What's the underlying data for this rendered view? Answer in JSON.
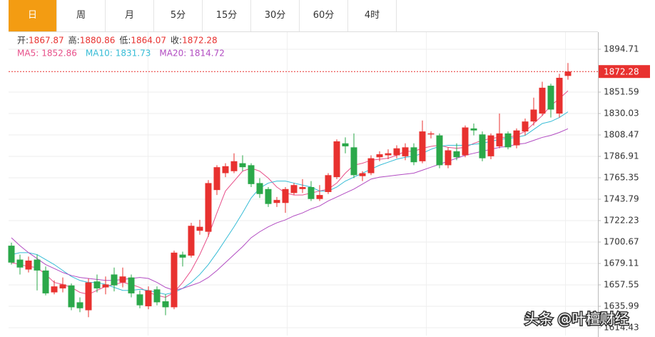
{
  "chart_data": {
    "type": "candlestick",
    "tabs": [
      "日",
      "周",
      "月",
      "5分",
      "15分",
      "30分",
      "60分",
      "4时"
    ],
    "active_tab": 0,
    "ohlc_labels": [
      "开:",
      "高:",
      "低:",
      "收:"
    ],
    "up_color": "#e8312f",
    "down_color": "#2ba84a",
    "candles": {
      "open": [
        1697,
        1683,
        1673,
        1683,
        1672,
        1650,
        1654,
        1657,
        1640,
        1632,
        1661,
        1655,
        1668,
        1660,
        1665,
        1648,
        1636,
        1653,
        1641,
        1635,
        1688,
        1687,
        1712,
        1711,
        1753,
        1770,
        1772,
        1780,
        1778,
        1760,
        1754,
        1740,
        1740,
        1750,
        1754,
        1756,
        1744,
        1751,
        1766,
        1800,
        1796,
        1767,
        1770,
        1786,
        1788,
        1788,
        1787,
        1796,
        1782,
        1809,
        1808,
        1778,
        1792,
        1788,
        1815,
        1809,
        1787,
        1797,
        1810,
        1798,
        1812,
        1822,
        1830,
        1858,
        1830,
        1867.87
      ],
      "high": [
        1700,
        1688,
        1686,
        1688,
        1676,
        1662,
        1665,
        1659,
        1645,
        1664,
        1668,
        1666,
        1675,
        1675,
        1668,
        1652,
        1656,
        1656,
        1648,
        1692,
        1691,
        1720,
        1723,
        1763,
        1778,
        1780,
        1790,
        1788,
        1780,
        1765,
        1756,
        1746,
        1756,
        1760,
        1764,
        1762,
        1758,
        1770,
        1804,
        1806,
        1810,
        1772,
        1788,
        1792,
        1794,
        1798,
        1800,
        1800,
        1823,
        1812,
        1810,
        1796,
        1800,
        1818,
        1820,
        1812,
        1810,
        1830,
        1812,
        1815,
        1825,
        1846,
        1862,
        1860,
        1870,
        1880.86
      ],
      "low": [
        1678,
        1668,
        1670,
        1652,
        1647,
        1648,
        1650,
        1632,
        1630,
        1625,
        1650,
        1648,
        1651,
        1655,
        1645,
        1634,
        1633,
        1637,
        1627,
        1633,
        1676,
        1685,
        1708,
        1706,
        1748,
        1766,
        1770,
        1772,
        1756,
        1745,
        1736,
        1736,
        1730,
        1748,
        1750,
        1742,
        1742,
        1749,
        1764,
        1790,
        1765,
        1762,
        1768,
        1782,
        1784,
        1785,
        1783,
        1778,
        1780,
        1805,
        1775,
        1775,
        1783,
        1786,
        1808,
        1782,
        1784,
        1795,
        1794,
        1795,
        1808,
        1818,
        1828,
        1826,
        1826,
        1864.07
      ],
      "close": [
        1680,
        1675,
        1682,
        1672,
        1649,
        1656,
        1658,
        1635,
        1634,
        1660,
        1654,
        1658,
        1657,
        1666,
        1649,
        1637,
        1652,
        1640,
        1635,
        1690,
        1685,
        1717,
        1716,
        1760,
        1776,
        1777,
        1782,
        1776,
        1759,
        1749,
        1739,
        1743,
        1754,
        1758,
        1756,
        1744,
        1748,
        1768,
        1802,
        1797,
        1768,
        1770,
        1785,
        1789,
        1790,
        1795,
        1796,
        1781,
        1812,
        1810,
        1778,
        1793,
        1786,
        1816,
        1813,
        1785,
        1808,
        1810,
        1796,
        1813,
        1822,
        1834,
        1856,
        1834,
        1866,
        1872.28
      ]
    },
    "series": [
      {
        "name": "MA5:",
        "color": "#e8508a",
        "values": [
          1680,
          1678,
          1676,
          1675,
          1668,
          1660,
          1658,
          1655,
          1650,
          1648,
          1652,
          1656,
          1658,
          1660,
          1658,
          1655,
          1650,
          1647,
          1645,
          1650,
          1660,
          1672,
          1688,
          1707,
          1730,
          1752,
          1762,
          1772,
          1775,
          1772,
          1765,
          1756,
          1750,
          1748,
          1748,
          1750,
          1752,
          1754,
          1760,
          1770,
          1778,
          1780,
          1783,
          1784,
          1785,
          1788,
          1792,
          1792,
          1795,
          1797,
          1798,
          1796,
          1795,
          1796,
          1800,
          1803,
          1805,
          1806,
          1806,
          1808,
          1812,
          1820,
          1828,
          1838,
          1845,
          1852.86
        ]
      },
      {
        "name": "MA10:",
        "color": "#36bcd6",
        "values": [
          1688,
          1690,
          1690,
          1688,
          1683,
          1678,
          1672,
          1666,
          1662,
          1660,
          1660,
          1658,
          1655,
          1652,
          1652,
          1653,
          1652,
          1650,
          1648,
          1650,
          1654,
          1660,
          1668,
          1678,
          1690,
          1703,
          1716,
          1730,
          1745,
          1755,
          1760,
          1762,
          1762,
          1760,
          1758,
          1756,
          1752,
          1752,
          1756,
          1762,
          1766,
          1770,
          1774,
          1778,
          1781,
          1784,
          1786,
          1787,
          1790,
          1794,
          1797,
          1798,
          1798,
          1798,
          1799,
          1800,
          1802,
          1804,
          1805,
          1806,
          1808,
          1814,
          1820,
          1822,
          1826,
          1831.73
        ]
      },
      {
        "name": "MA20:",
        "color": "#b24cc2",
        "values": [
          1705,
          1697,
          1690,
          1684,
          1678,
          1674,
          1670,
          1667,
          1665,
          1664,
          1663,
          1662,
          1662,
          1663,
          1664,
          1665,
          1664,
          1660,
          1655,
          1652,
          1654,
          1657,
          1660,
          1665,
          1672,
          1680,
          1688,
          1696,
          1705,
          1711,
          1716,
          1720,
          1723,
          1727,
          1730,
          1734,
          1737,
          1742,
          1746,
          1750,
          1754,
          1759,
          1764,
          1766,
          1767,
          1768,
          1769,
          1770,
          1773,
          1776,
          1779,
          1782,
          1785,
          1788,
          1790,
          1792,
          1794,
          1796,
          1797,
          1799,
          1800,
          1803,
          1806,
          1808,
          1811,
          1814.72
        ]
      }
    ],
    "ylim": [
      1610.1,
      1911.96
    ],
    "yticks": [
      1894.71,
      1851.59,
      1830.03,
      1808.47,
      1786.91,
      1765.35,
      1743.79,
      1722.23,
      1700.67,
      1679.11,
      1657.55,
      1635.99,
      1614.43
    ],
    "grid": true,
    "watermark": "头条 @叶檀财经"
  }
}
